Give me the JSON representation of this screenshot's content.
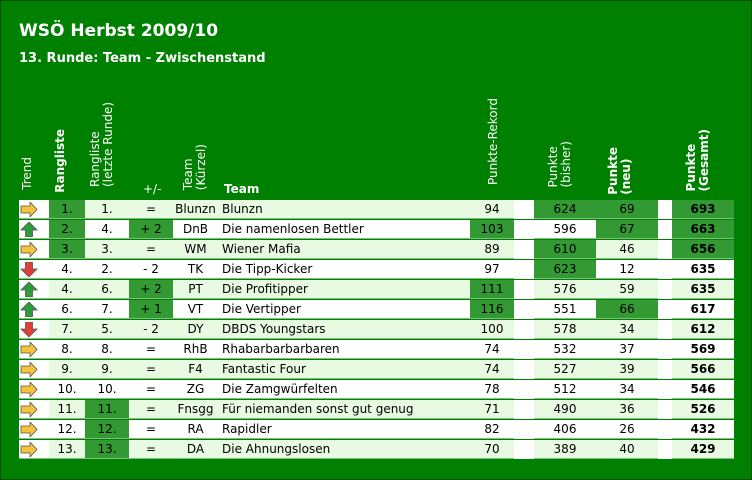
{
  "title": "WSÖ Herbst 2009/10",
  "subtitle": "13. Runde: Team - Zwischenstand",
  "headers": {
    "trend": "Trend",
    "rangliste": "Rangliste",
    "rangliste_letzte_1": "Rangliste",
    "rangliste_letzte_2": "(letzte Runde)",
    "plusminus": "+/-",
    "team_kurz_1": "Team",
    "team_kurz_2": "(Kürzel)",
    "team": "Team",
    "rekord": "Punkte-Rekord",
    "bisher_1": "Punkte",
    "bisher_2": "(bisher)",
    "neu_1": "Punkte",
    "neu_2": "(neu)",
    "gesamt_1": "Punkte",
    "gesamt_2": "(Gesamt)"
  },
  "colors": {
    "background": "#008000",
    "highlight": "#339933",
    "row_light": "#e8fbe2",
    "row_white": "#ffffff",
    "arrow_up": "#2f9a3a",
    "arrow_down": "#e0403a",
    "arrow_right": "#f5c23c"
  },
  "rows": [
    {
      "trend": "right",
      "rank": "1.",
      "prev": "1.",
      "diff": "=",
      "short": "Blunzn",
      "team": "Blunzn",
      "rekord": "94",
      "bisher": "624",
      "neu": "69",
      "gesamt": "693",
      "hl": {
        "rank": true,
        "prev": false,
        "diff": false,
        "rekord": false,
        "bisher": true,
        "neu": true,
        "gesamt": true
      }
    },
    {
      "trend": "up",
      "rank": "2.",
      "prev": "4.",
      "diff": "+ 2",
      "short": "DnB",
      "team": "Die namenlosen Bettler",
      "rekord": "103",
      "bisher": "596",
      "neu": "67",
      "gesamt": "663",
      "hl": {
        "rank": true,
        "prev": false,
        "diff": true,
        "rekord": true,
        "bisher": false,
        "neu": true,
        "gesamt": true
      }
    },
    {
      "trend": "right",
      "rank": "3.",
      "prev": "3.",
      "diff": "=",
      "short": "WM",
      "team": "Wiener Mafia",
      "rekord": "89",
      "bisher": "610",
      "neu": "46",
      "gesamt": "656",
      "hl": {
        "rank": true,
        "prev": false,
        "diff": false,
        "rekord": false,
        "bisher": true,
        "neu": false,
        "gesamt": true
      }
    },
    {
      "trend": "down",
      "rank": "4.",
      "prev": "2.",
      "diff": "- 2",
      "short": "TK",
      "team": "Die Tipp-Kicker",
      "rekord": "97",
      "bisher": "623",
      "neu": "12",
      "gesamt": "635",
      "hl": {
        "rank": false,
        "prev": false,
        "diff": false,
        "rekord": false,
        "bisher": true,
        "neu": false,
        "gesamt": false
      }
    },
    {
      "trend": "up",
      "rank": "4.",
      "prev": "6.",
      "diff": "+ 2",
      "short": "PT",
      "team": "Die Profitipper",
      "rekord": "111",
      "bisher": "576",
      "neu": "59",
      "gesamt": "635",
      "hl": {
        "rank": false,
        "prev": false,
        "diff": true,
        "rekord": true,
        "bisher": false,
        "neu": false,
        "gesamt": false
      }
    },
    {
      "trend": "up",
      "rank": "6.",
      "prev": "7.",
      "diff": "+ 1",
      "short": "VT",
      "team": "Die Vertipper",
      "rekord": "116",
      "bisher": "551",
      "neu": "66",
      "gesamt": "617",
      "hl": {
        "rank": false,
        "prev": false,
        "diff": true,
        "rekord": true,
        "bisher": false,
        "neu": true,
        "gesamt": false
      }
    },
    {
      "trend": "down",
      "rank": "7.",
      "prev": "5.",
      "diff": "- 2",
      "short": "DY",
      "team": "DBDS Youngstars",
      "rekord": "100",
      "bisher": "578",
      "neu": "34",
      "gesamt": "612",
      "hl": {
        "rank": false,
        "prev": false,
        "diff": false,
        "rekord": false,
        "bisher": false,
        "neu": false,
        "gesamt": false
      }
    },
    {
      "trend": "right",
      "rank": "8.",
      "prev": "8.",
      "diff": "=",
      "short": "RhB",
      "team": "Rhabarbarbarbaren",
      "rekord": "74",
      "bisher": "532",
      "neu": "37",
      "gesamt": "569",
      "hl": {
        "rank": false,
        "prev": false,
        "diff": false,
        "rekord": false,
        "bisher": false,
        "neu": false,
        "gesamt": false
      }
    },
    {
      "trend": "right",
      "rank": "9.",
      "prev": "9.",
      "diff": "=",
      "short": "F4",
      "team": "Fantastic Four",
      "rekord": "74",
      "bisher": "527",
      "neu": "39",
      "gesamt": "566",
      "hl": {
        "rank": false,
        "prev": false,
        "diff": false,
        "rekord": false,
        "bisher": false,
        "neu": false,
        "gesamt": false
      }
    },
    {
      "trend": "right",
      "rank": "10.",
      "prev": "10.",
      "diff": "=",
      "short": "ZG",
      "team": "Die Zamgwürfelten",
      "rekord": "78",
      "bisher": "512",
      "neu": "34",
      "gesamt": "546",
      "hl": {
        "rank": false,
        "prev": false,
        "diff": false,
        "rekord": false,
        "bisher": false,
        "neu": false,
        "gesamt": false
      }
    },
    {
      "trend": "right",
      "rank": "11.",
      "prev": "11.",
      "diff": "=",
      "short": "Fnsgg",
      "team": "Für niemanden sonst gut genug",
      "rekord": "71",
      "bisher": "490",
      "neu": "36",
      "gesamt": "526",
      "hl": {
        "rank": false,
        "prev": true,
        "diff": false,
        "rekord": false,
        "bisher": false,
        "neu": false,
        "gesamt": false
      }
    },
    {
      "trend": "right",
      "rank": "12.",
      "prev": "12.",
      "diff": "=",
      "short": "RA",
      "team": "Rapidler",
      "rekord": "82",
      "bisher": "406",
      "neu": "26",
      "gesamt": "432",
      "hl": {
        "rank": false,
        "prev": true,
        "diff": false,
        "rekord": false,
        "bisher": false,
        "neu": false,
        "gesamt": false
      }
    },
    {
      "trend": "right",
      "rank": "13.",
      "prev": "13.",
      "diff": "=",
      "short": "DA",
      "team": "Die Ahnungslosen",
      "rekord": "70",
      "bisher": "389",
      "neu": "40",
      "gesamt": "429",
      "hl": {
        "rank": false,
        "prev": true,
        "diff": false,
        "rekord": false,
        "bisher": false,
        "neu": false,
        "gesamt": false
      }
    }
  ]
}
